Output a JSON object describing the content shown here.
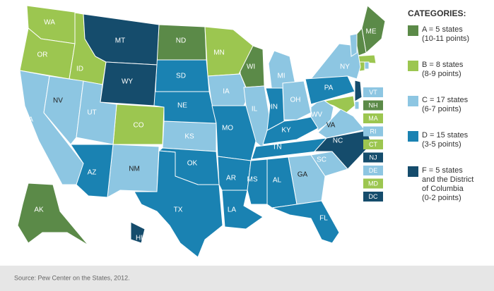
{
  "legend_title": "CATEGORIES:",
  "categories": [
    {
      "label": [
        "A = 5 states",
        "(10-11 points)"
      ],
      "color": "#5b8a48",
      "states": [
        "ND",
        "WI",
        "ME",
        "NH",
        "AK"
      ]
    },
    {
      "label": [
        "B = 8 states",
        "(8-9 points)"
      ],
      "color": "#9cc650",
      "states": [
        "WA",
        "OR",
        "ID",
        "MN",
        "CO",
        "MA",
        "CT",
        "MD"
      ]
    },
    {
      "label": [
        "C = 17 states",
        "(6-7 points)"
      ],
      "color": "#8dc6e2",
      "states": [
        "CA",
        "NV",
        "UT",
        "NM",
        "KS",
        "IA",
        "IL",
        "MI",
        "OH",
        "WV",
        "VA",
        "NY",
        "GA",
        "SC",
        "VT",
        "RI",
        "DE"
      ]
    },
    {
      "label": [
        "D = 15 states",
        "(3-5 points)"
      ],
      "color": "#1a82b2",
      "states": [
        "SD",
        "NE",
        "MO",
        "OK",
        "TX",
        "AR",
        "LA",
        "MS",
        "AL",
        "TN",
        "KY",
        "IN",
        "AZ",
        "FL",
        "PA"
      ]
    },
    {
      "label": [
        "F = 5 states",
        "and the District",
        "of Columbia",
        "(0-2 points)"
      ],
      "color": "#154c6c",
      "states": [
        "MT",
        "WY",
        "NC",
        "NJ",
        "HI",
        "DC"
      ]
    }
  ],
  "inset": [
    "VT",
    "NH",
    "MA",
    "RI",
    "CT",
    "NJ",
    "DE",
    "MD",
    "DC"
  ],
  "source": "Source: Pew Center on the States, 2012."
}
